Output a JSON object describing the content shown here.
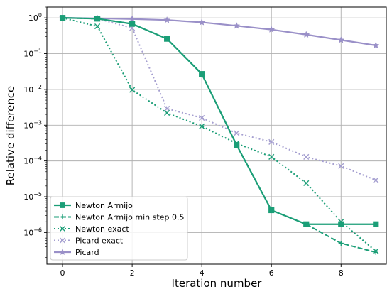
{
  "chart_data": {
    "type": "line",
    "title": "",
    "xlabel": "Iteration number",
    "ylabel": "Relative difference",
    "xlim": [
      -0.45,
      9.3
    ],
    "ylim": [
      1.3e-07,
      2.0
    ],
    "y_scale": "log",
    "grid": true,
    "legend_position": "lower-left",
    "x_ticks": [
      0,
      2,
      4,
      6,
      8
    ],
    "x_tick_labels": [
      "0",
      "2",
      "4",
      "6",
      "8"
    ],
    "y_ticks": [
      1.0,
      0.1,
      0.01,
      0.001,
      0.0001,
      1e-05,
      1e-06
    ],
    "y_tick_labels": [
      {
        "base": "10",
        "exp": "0"
      },
      {
        "base": "10",
        "exp": "−1"
      },
      {
        "base": "10",
        "exp": "−2"
      },
      {
        "base": "10",
        "exp": "−3"
      },
      {
        "base": "10",
        "exp": "−4"
      },
      {
        "base": "10",
        "exp": "−5"
      },
      {
        "base": "10",
        "exp": "−6"
      }
    ],
    "series": [
      {
        "name": "Newton Armijo",
        "color": "#1b9e77",
        "dash": "solid",
        "marker": "square",
        "x": [
          0,
          1,
          2,
          3,
          4,
          5,
          6,
          7,
          8,
          9
        ],
        "y": [
          1.0,
          0.95,
          0.68,
          0.26,
          0.027,
          0.00028,
          4.2e-06,
          1.7e-06,
          1.7e-06,
          1.7e-06
        ]
      },
      {
        "name": "Newton Armijo min step 0.5",
        "color": "#1b9e77",
        "dash": "dashed",
        "marker": "tri",
        "x": [
          0,
          1,
          2,
          3,
          4,
          5,
          6,
          7,
          8,
          9
        ],
        "y": [
          1.0,
          0.95,
          0.68,
          0.26,
          0.027,
          0.00028,
          4.2e-06,
          1.7e-06,
          5e-07,
          2.8e-07
        ]
      },
      {
        "name": "Newton exact",
        "color": "#1b9e77",
        "dash": "dotted",
        "marker": "x",
        "x": [
          0,
          1,
          2,
          3,
          4,
          5,
          6,
          7,
          8,
          9
        ],
        "y": [
          1.0,
          0.58,
          0.0097,
          0.0022,
          0.00093,
          0.00031,
          0.00013,
          2.4e-05,
          2e-06,
          3e-07
        ]
      },
      {
        "name": "Picard exact",
        "color": "#a59fd0",
        "dash": "dotted",
        "marker": "x",
        "x": [
          0,
          1,
          2,
          3,
          4,
          5,
          6,
          7,
          8,
          9
        ],
        "y": [
          1.0,
          0.95,
          0.52,
          0.0029,
          0.0016,
          0.0006,
          0.00034,
          0.00013,
          7.2e-05,
          2.9e-05
        ]
      },
      {
        "name": "Picard",
        "color": "#9a90c8",
        "dash": "solid",
        "marker": "star",
        "x": [
          0,
          1,
          2,
          3,
          4,
          5,
          6,
          7,
          8,
          9
        ],
        "y": [
          1.0,
          0.97,
          0.93,
          0.87,
          0.75,
          0.6,
          0.47,
          0.34,
          0.24,
          0.17
        ]
      }
    ]
  }
}
